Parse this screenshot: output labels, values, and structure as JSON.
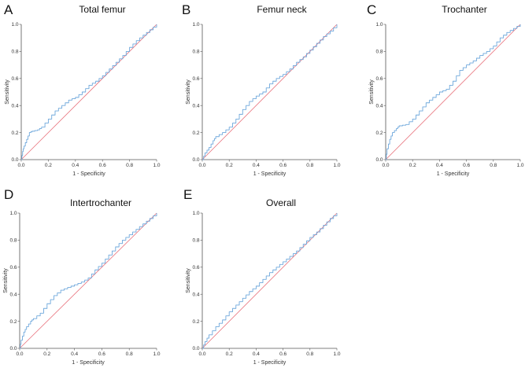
{
  "chart_data": [
    {
      "panel_label": "A",
      "type": "line",
      "title": "Total femur",
      "xlabel": "1 - Specificity",
      "ylabel": "Sensitivity",
      "xlim": [
        0,
        1
      ],
      "ylim": [
        0,
        1
      ],
      "xticks": [
        "0.0",
        "0.2",
        "0.4",
        "0.6",
        "0.8",
        "1.0"
      ],
      "yticks": [
        "0.0",
        "0.2",
        "0.4",
        "0.6",
        "0.8",
        "1.0"
      ],
      "grid": false,
      "series": [
        {
          "role": "roc",
          "color": "#6fa8dc",
          "x": [
            0,
            0.01,
            0.02,
            0.04,
            0.06,
            0.08,
            0.12,
            0.15,
            0.2,
            0.25,
            0.3,
            0.35,
            0.4,
            0.45,
            0.5,
            0.55,
            0.6,
            0.65,
            0.7,
            0.75,
            0.8,
            0.85,
            0.9,
            0.95,
            1
          ],
          "y": [
            0,
            0.06,
            0.1,
            0.15,
            0.2,
            0.21,
            0.22,
            0.24,
            0.3,
            0.36,
            0.4,
            0.44,
            0.46,
            0.5,
            0.55,
            0.58,
            0.62,
            0.67,
            0.72,
            0.77,
            0.83,
            0.88,
            0.92,
            0.96,
            1
          ]
        },
        {
          "role": "reference",
          "color": "#e8707a",
          "x": [
            0,
            1
          ],
          "y": [
            0,
            1
          ]
        }
      ]
    },
    {
      "panel_label": "B",
      "type": "line",
      "title": "Femur neck",
      "xlabel": "1 - Specificity",
      "ylabel": "Sensitivity",
      "xlim": [
        0,
        1
      ],
      "ylim": [
        0,
        1
      ],
      "xticks": [
        "0.0",
        "0.2",
        "0.4",
        "0.6",
        "0.8",
        "1.0"
      ],
      "yticks": [
        "0.0",
        "0.2",
        "0.4",
        "0.6",
        "0.8",
        "1.0"
      ],
      "grid": false,
      "series": [
        {
          "role": "roc",
          "color": "#6fa8dc",
          "x": [
            0,
            0.02,
            0.05,
            0.08,
            0.1,
            0.15,
            0.2,
            0.25,
            0.3,
            0.35,
            0.4,
            0.45,
            0.5,
            0.55,
            0.6,
            0.65,
            0.7,
            0.75,
            0.8,
            0.85,
            0.9,
            0.95,
            1
          ],
          "y": [
            0,
            0.05,
            0.09,
            0.14,
            0.17,
            0.2,
            0.24,
            0.3,
            0.37,
            0.43,
            0.47,
            0.5,
            0.56,
            0.6,
            0.63,
            0.67,
            0.72,
            0.76,
            0.81,
            0.86,
            0.91,
            0.95,
            1
          ]
        },
        {
          "role": "reference",
          "color": "#e8707a",
          "x": [
            0,
            1
          ],
          "y": [
            0,
            1
          ]
        }
      ]
    },
    {
      "panel_label": "C",
      "type": "line",
      "title": "Trochanter",
      "xlabel": "1 - Specificity",
      "ylabel": "Sensitivity",
      "xlim": [
        0,
        1
      ],
      "ylim": [
        0,
        1
      ],
      "xticks": [
        "0.0",
        "0.2",
        "0.4",
        "0.6",
        "0.8",
        "1.0"
      ],
      "yticks": [
        "0.0",
        "0.2",
        "0.4",
        "0.6",
        "0.8",
        "1.0"
      ],
      "grid": false,
      "series": [
        {
          "role": "roc",
          "color": "#6fa8dc",
          "x": [
            0,
            0.01,
            0.03,
            0.05,
            0.08,
            0.1,
            0.15,
            0.2,
            0.25,
            0.3,
            0.35,
            0.4,
            0.45,
            0.5,
            0.55,
            0.6,
            0.65,
            0.7,
            0.75,
            0.8,
            0.85,
            0.9,
            0.95,
            1
          ],
          "y": [
            0,
            0.08,
            0.15,
            0.2,
            0.23,
            0.25,
            0.26,
            0.3,
            0.36,
            0.42,
            0.46,
            0.5,
            0.52,
            0.58,
            0.66,
            0.7,
            0.73,
            0.77,
            0.8,
            0.84,
            0.9,
            0.94,
            0.97,
            1
          ]
        },
        {
          "role": "reference",
          "color": "#e8707a",
          "x": [
            0,
            1
          ],
          "y": [
            0,
            1
          ]
        }
      ]
    },
    {
      "panel_label": "D",
      "type": "line",
      "title": "Intertrochanter",
      "xlabel": "1 - Specificity",
      "ylabel": "Sensitivity",
      "xlim": [
        0,
        1
      ],
      "ylim": [
        0,
        1
      ],
      "xticks": [
        "0.0",
        "0.2",
        "0.4",
        "0.6",
        "0.8",
        "1.0"
      ],
      "yticks": [
        "0.0",
        "0.2",
        "0.4",
        "0.6",
        "0.8",
        "1.0"
      ],
      "grid": false,
      "series": [
        {
          "role": "roc",
          "color": "#6fa8dc",
          "x": [
            0,
            0.01,
            0.03,
            0.05,
            0.08,
            0.1,
            0.15,
            0.2,
            0.25,
            0.3,
            0.35,
            0.4,
            0.45,
            0.5,
            0.55,
            0.6,
            0.65,
            0.7,
            0.75,
            0.8,
            0.85,
            0.9,
            0.95,
            1
          ],
          "y": [
            0,
            0.06,
            0.12,
            0.16,
            0.2,
            0.22,
            0.26,
            0.33,
            0.39,
            0.43,
            0.45,
            0.47,
            0.49,
            0.52,
            0.58,
            0.63,
            0.69,
            0.75,
            0.8,
            0.84,
            0.88,
            0.92,
            0.96,
            1
          ]
        },
        {
          "role": "reference",
          "color": "#e8707a",
          "x": [
            0,
            1
          ],
          "y": [
            0,
            1
          ]
        }
      ]
    },
    {
      "panel_label": "E",
      "type": "line",
      "title": "Overall",
      "xlabel": "1 - Specificity",
      "ylabel": "Sensitivity",
      "xlim": [
        0,
        1
      ],
      "ylim": [
        0,
        1
      ],
      "xticks": [
        "0.0",
        "0.2",
        "0.4",
        "0.6",
        "0.8",
        "1.0"
      ],
      "yticks": [
        "0.0",
        "0.2",
        "0.4",
        "0.6",
        "0.8",
        "1.0"
      ],
      "grid": false,
      "series": [
        {
          "role": "roc",
          "color": "#6fa8dc",
          "x": [
            0,
            0.02,
            0.05,
            0.1,
            0.15,
            0.2,
            0.25,
            0.3,
            0.35,
            0.4,
            0.45,
            0.5,
            0.55,
            0.6,
            0.65,
            0.7,
            0.75,
            0.8,
            0.85,
            0.9,
            0.95,
            1
          ],
          "y": [
            0,
            0.05,
            0.1,
            0.16,
            0.21,
            0.27,
            0.32,
            0.37,
            0.42,
            0.46,
            0.51,
            0.56,
            0.6,
            0.64,
            0.68,
            0.72,
            0.77,
            0.82,
            0.86,
            0.91,
            0.96,
            1
          ]
        },
        {
          "role": "reference",
          "color": "#e8707a",
          "x": [
            0,
            1
          ],
          "y": [
            0,
            1
          ]
        }
      ]
    }
  ]
}
